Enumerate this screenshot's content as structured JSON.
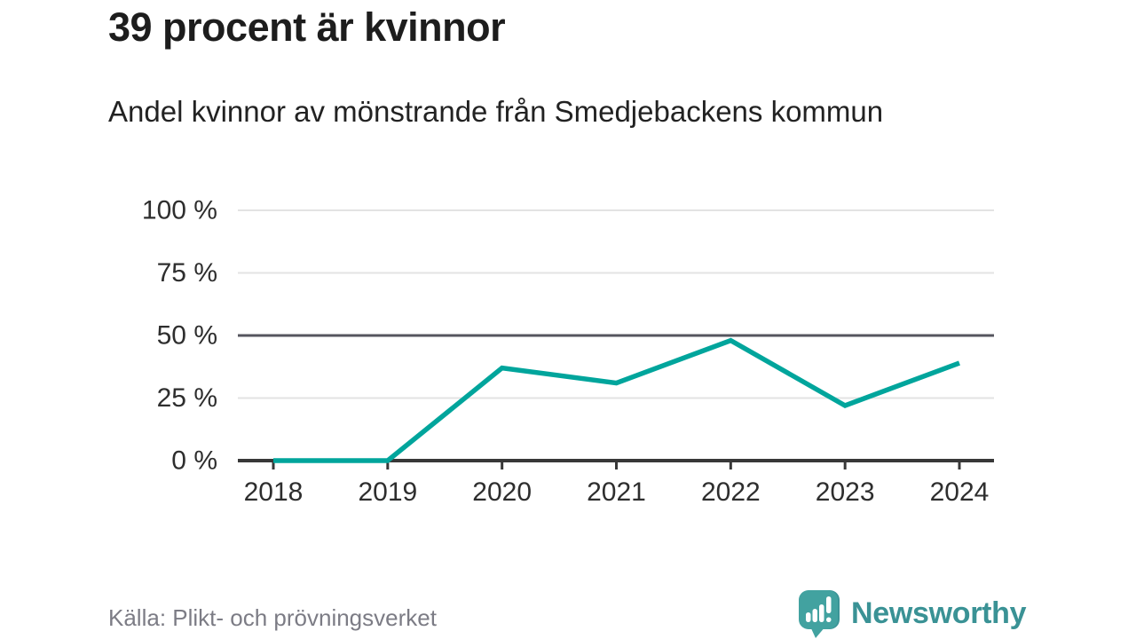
{
  "header": {
    "title": "39 procent är kvinnor",
    "subtitle": "Andel kvinnor av mönstrande från Smedjebackens kommun"
  },
  "footer": {
    "source": "Källa: Plikt- och prövningsverket",
    "brand": "Newsworthy"
  },
  "colors": {
    "line": "#00a59c",
    "axis": "#383838",
    "grid": "#e3e3e3",
    "grid_emphasis": "#55555e",
    "tick_label": "#2e2e2e",
    "source_text": "#7c7c85",
    "brand_teal": "#3a9295",
    "logo_fill": "#42a2a0",
    "background": "#ffffff"
  },
  "chart_data": {
    "type": "line",
    "title": "39 procent är kvinnor",
    "subtitle": "Andel kvinnor av mönstrande från Smedjebackens kommun",
    "categories": [
      "2018",
      "2019",
      "2020",
      "2021",
      "2022",
      "2023",
      "2024"
    ],
    "values": [
      0,
      0,
      37,
      31,
      48,
      22,
      39
    ],
    "xlabel": "",
    "ylabel": "",
    "ylim": [
      0,
      100
    ],
    "yticks": [
      0,
      25,
      50,
      75,
      100
    ],
    "ytick_labels": [
      "0 %",
      "25 %",
      "50 %",
      "75 %",
      "100 %"
    ],
    "emphasized_gridline": 50,
    "grid": true,
    "legend": false,
    "source": "Källa: Plikt- och prövningsverket"
  }
}
